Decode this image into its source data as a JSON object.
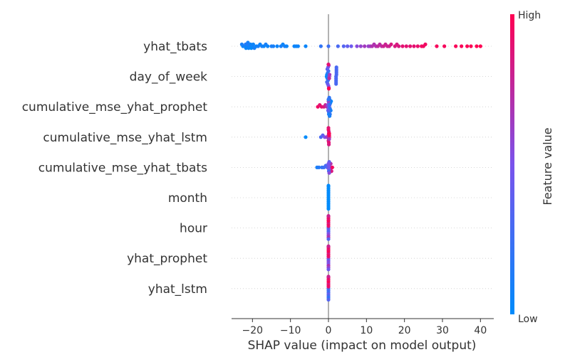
{
  "chart_data": {
    "type": "scatter",
    "subtype": "shap-beeswarm",
    "title": "",
    "xlabel": "SHAP value (impact on model output)",
    "ylabel": "",
    "xlim": [
      -25.5,
      43.5
    ],
    "xticks": [
      -20,
      -10,
      0,
      10,
      20,
      30,
      40
    ],
    "xtick_labels": [
      "−20",
      "−10",
      "0",
      "10",
      "20",
      "30",
      "40"
    ],
    "grid": "horizontal dotted lines per feature",
    "legend": "colorbar right",
    "colorbar": {
      "label": "Feature value",
      "high_label": "High",
      "low_label": "Low",
      "high_color": "#ff0052",
      "low_color": "#008bfb"
    },
    "features": [
      {
        "name": "yhat_tbats",
        "points": [
          [
            -22.5,
            0.05
          ],
          [
            -22.0,
            0.1
          ],
          [
            -21.8,
            0.15
          ],
          [
            -21.5,
            0.0
          ],
          [
            -21.3,
            0.15
          ],
          [
            -21.0,
            0.05
          ],
          [
            -22.8,
            0.1
          ],
          [
            -20.8,
            0.1
          ],
          [
            -20.5,
            0.05
          ],
          [
            -20.0,
            0.1
          ],
          [
            -21.7,
            0.05
          ],
          [
            -21.2,
            0.1
          ],
          [
            -20.3,
            0.0
          ],
          [
            -19.8,
            0.05
          ],
          [
            -19.5,
            0.1
          ],
          [
            -19.0,
            0.05
          ],
          [
            -18.5,
            0.1
          ],
          [
            -18.0,
            0.05
          ],
          [
            -17.5,
            0.1
          ],
          [
            -17.0,
            0.05
          ],
          [
            -16.5,
            0.1
          ],
          [
            -16.0,
            0.05
          ],
          [
            -15.0,
            0.1
          ],
          [
            -14.5,
            0.1
          ],
          [
            -13.5,
            0.05
          ],
          [
            -12.5,
            0.1
          ],
          [
            -12.0,
            0.05
          ],
          [
            -11.5,
            0.1
          ],
          [
            -11.0,
            0.05
          ],
          [
            -9.0,
            0.05
          ],
          [
            -8.5,
            0.05
          ],
          [
            -8.0,
            0.05
          ],
          [
            -6.0,
            0.05
          ],
          [
            -2.0,
            0.2
          ],
          [
            0.0,
            0.25
          ],
          [
            2.5,
            0.3
          ],
          [
            4.0,
            0.35
          ],
          [
            5.0,
            0.4
          ],
          [
            6.0,
            0.45
          ],
          [
            7.5,
            0.55
          ],
          [
            8.5,
            0.6
          ],
          [
            9.5,
            0.65
          ],
          [
            10.5,
            0.6
          ],
          [
            11.0,
            0.65
          ],
          [
            11.5,
            0.7
          ],
          [
            12.0,
            0.7
          ],
          [
            12.5,
            0.7
          ],
          [
            13.0,
            0.75
          ],
          [
            13.5,
            0.75
          ],
          [
            14.0,
            0.75
          ],
          [
            14.5,
            0.8
          ],
          [
            15.0,
            0.8
          ],
          [
            15.5,
            0.8
          ],
          [
            16.0,
            0.8
          ],
          [
            16.5,
            0.85
          ],
          [
            17.5,
            0.85
          ],
          [
            18.0,
            0.85
          ],
          [
            18.5,
            0.85
          ],
          [
            19.5,
            0.9
          ],
          [
            20.5,
            0.9
          ],
          [
            21.5,
            0.9
          ],
          [
            22.5,
            0.9
          ],
          [
            23.5,
            0.92
          ],
          [
            24.5,
            0.95
          ],
          [
            25.0,
            0.95
          ],
          [
            25.5,
            0.95
          ],
          [
            28.5,
            0.97
          ],
          [
            30.5,
            0.97
          ],
          [
            33.5,
            0.98
          ],
          [
            35.0,
            0.98
          ],
          [
            36.5,
            0.99
          ],
          [
            37.5,
            0.99
          ],
          [
            39.0,
            1.0
          ],
          [
            40.0,
            1.0
          ]
        ]
      },
      {
        "name": "day_of_week",
        "points": [
          [
            -0.5,
            0.0
          ],
          [
            -0.4,
            0.05
          ],
          [
            -0.3,
            0.1
          ],
          [
            -0.2,
            0.15
          ],
          [
            -0.1,
            0.2
          ],
          [
            0.0,
            0.25
          ],
          [
            -0.4,
            0.3
          ],
          [
            -0.3,
            0.35
          ],
          [
            -0.2,
            0.4
          ],
          [
            -0.1,
            0.45
          ],
          [
            0.0,
            0.5
          ],
          [
            0.1,
            0.55
          ],
          [
            0.2,
            0.6
          ],
          [
            0.3,
            0.65
          ],
          [
            0.1,
            0.7
          ],
          [
            0.2,
            0.75
          ],
          [
            0.0,
            0.8
          ],
          [
            0.1,
            0.85
          ],
          [
            0.0,
            0.9
          ],
          [
            0.1,
            1.0
          ],
          [
            2.0,
            0.3
          ],
          [
            2.1,
            0.3
          ],
          [
            2.0,
            0.3
          ],
          [
            2.1,
            0.3
          ],
          [
            2.0,
            0.3
          ],
          [
            2.1,
            0.3
          ],
          [
            2.0,
            0.3
          ],
          [
            2.1,
            0.3
          ],
          [
            2.0,
            0.3
          ],
          [
            2.1,
            0.3
          ]
        ]
      },
      {
        "name": "cumulative_mse_yhat_prophet",
        "points": [
          [
            -2.8,
            0.95
          ],
          [
            -2.3,
            0.9
          ],
          [
            -1.8,
            0.9
          ],
          [
            -1.2,
            0.85
          ],
          [
            -0.8,
            0.8
          ],
          [
            -0.4,
            0.7
          ],
          [
            -0.2,
            0.55
          ],
          [
            0.0,
            0.5
          ],
          [
            0.1,
            0.45
          ],
          [
            0.2,
            0.35
          ],
          [
            0.3,
            0.3
          ],
          [
            0.4,
            0.2
          ],
          [
            0.5,
            0.15
          ],
          [
            0.6,
            0.1
          ],
          [
            0.7,
            0.05
          ],
          [
            0.2,
            0.0
          ],
          [
            0.3,
            0.1
          ],
          [
            0.4,
            0.2
          ],
          [
            -0.1,
            0.4
          ],
          [
            0.0,
            0.6
          ],
          [
            0.1,
            0.3
          ],
          [
            0.2,
            0.2
          ],
          [
            0.3,
            0.1
          ],
          [
            0.0,
            0.2
          ],
          [
            0.1,
            0.1
          ]
        ]
      },
      {
        "name": "cumulative_mse_yhat_lstm",
        "points": [
          [
            -6.0,
            0.0
          ],
          [
            -2.0,
            0.3
          ],
          [
            -1.5,
            0.4
          ],
          [
            -1.0,
            0.5
          ],
          [
            -0.5,
            0.6
          ],
          [
            0.0,
            0.7
          ],
          [
            0.1,
            0.8
          ],
          [
            0.2,
            0.9
          ],
          [
            0.1,
            1.0
          ],
          [
            0.2,
            0.95
          ],
          [
            0.0,
            0.85
          ],
          [
            0.1,
            0.75
          ],
          [
            0.2,
            0.65
          ],
          [
            0.1,
            0.9
          ],
          [
            0.0,
            0.95
          ],
          [
            0.2,
            1.0
          ],
          [
            0.1,
            0.85
          ],
          [
            0.0,
            0.9
          ]
        ]
      },
      {
        "name": "cumulative_mse_yhat_tbats",
        "points": [
          [
            -3.0,
            0.1
          ],
          [
            -2.5,
            0.15
          ],
          [
            -1.7,
            0.2
          ],
          [
            -1.2,
            0.25
          ],
          [
            -0.7,
            0.3
          ],
          [
            -0.3,
            0.35
          ],
          [
            0.0,
            0.4
          ],
          [
            0.2,
            0.45
          ],
          [
            0.3,
            0.5
          ],
          [
            0.5,
            0.6
          ],
          [
            0.6,
            0.7
          ],
          [
            0.8,
            0.85
          ],
          [
            1.0,
            0.95
          ],
          [
            0.1,
            0.5
          ],
          [
            0.2,
            0.4
          ],
          [
            0.0,
            0.5
          ],
          [
            0.1,
            0.3
          ],
          [
            0.2,
            0.55
          ]
        ]
      },
      {
        "name": "month",
        "points": [
          [
            0.0,
            0.0
          ],
          [
            0.0,
            0.0
          ],
          [
            0.0,
            0.0
          ],
          [
            0.0,
            0.0
          ],
          [
            0.0,
            0.0
          ],
          [
            0.0,
            0.0
          ],
          [
            0.0,
            0.0
          ],
          [
            0.0,
            0.0
          ],
          [
            0.0,
            0.0
          ],
          [
            0.0,
            0.0
          ],
          [
            0.0,
            0.0
          ],
          [
            0.0,
            0.0
          ],
          [
            0.0,
            0.0
          ],
          [
            0.0,
            0.0
          ]
        ]
      },
      {
        "name": "hour",
        "points": [
          [
            0.0,
            0.2
          ],
          [
            0.0,
            0.9
          ],
          [
            0.0,
            0.4
          ],
          [
            0.0,
            0.95
          ],
          [
            0.0,
            0.3
          ],
          [
            0.0,
            0.85
          ],
          [
            0.0,
            0.5
          ],
          [
            0.0,
            1.0
          ],
          [
            0.0,
            0.6
          ],
          [
            0.0,
            0.9
          ],
          [
            0.0,
            0.7
          ],
          [
            0.0,
            0.95
          ],
          [
            0.0,
            0.35
          ],
          [
            0.0,
            0.8
          ]
        ]
      },
      {
        "name": "yhat_prophet",
        "points": [
          [
            0.0,
            0.6
          ],
          [
            0.0,
            0.9
          ],
          [
            0.0,
            0.4
          ],
          [
            0.0,
            0.95
          ],
          [
            0.0,
            0.55
          ],
          [
            0.0,
            0.85
          ],
          [
            0.0,
            0.5
          ],
          [
            0.0,
            1.0
          ],
          [
            0.0,
            0.7
          ],
          [
            0.0,
            0.9
          ],
          [
            0.0,
            0.6
          ],
          [
            0.0,
            0.95
          ],
          [
            0.0,
            0.45
          ],
          [
            0.0,
            0.8
          ]
        ]
      },
      {
        "name": "yhat_lstm",
        "points": [
          [
            0.0,
            0.2
          ],
          [
            0.0,
            0.9
          ],
          [
            0.0,
            0.3
          ],
          [
            0.0,
            0.95
          ],
          [
            0.0,
            0.25
          ],
          [
            0.0,
            0.85
          ],
          [
            0.0,
            0.4
          ],
          [
            0.0,
            1.0
          ],
          [
            0.0,
            0.3
          ],
          [
            0.0,
            0.9
          ],
          [
            0.0,
            0.2
          ],
          [
            0.0,
            0.95
          ],
          [
            0.0,
            0.35
          ],
          [
            0.0,
            0.8
          ]
        ]
      }
    ]
  }
}
